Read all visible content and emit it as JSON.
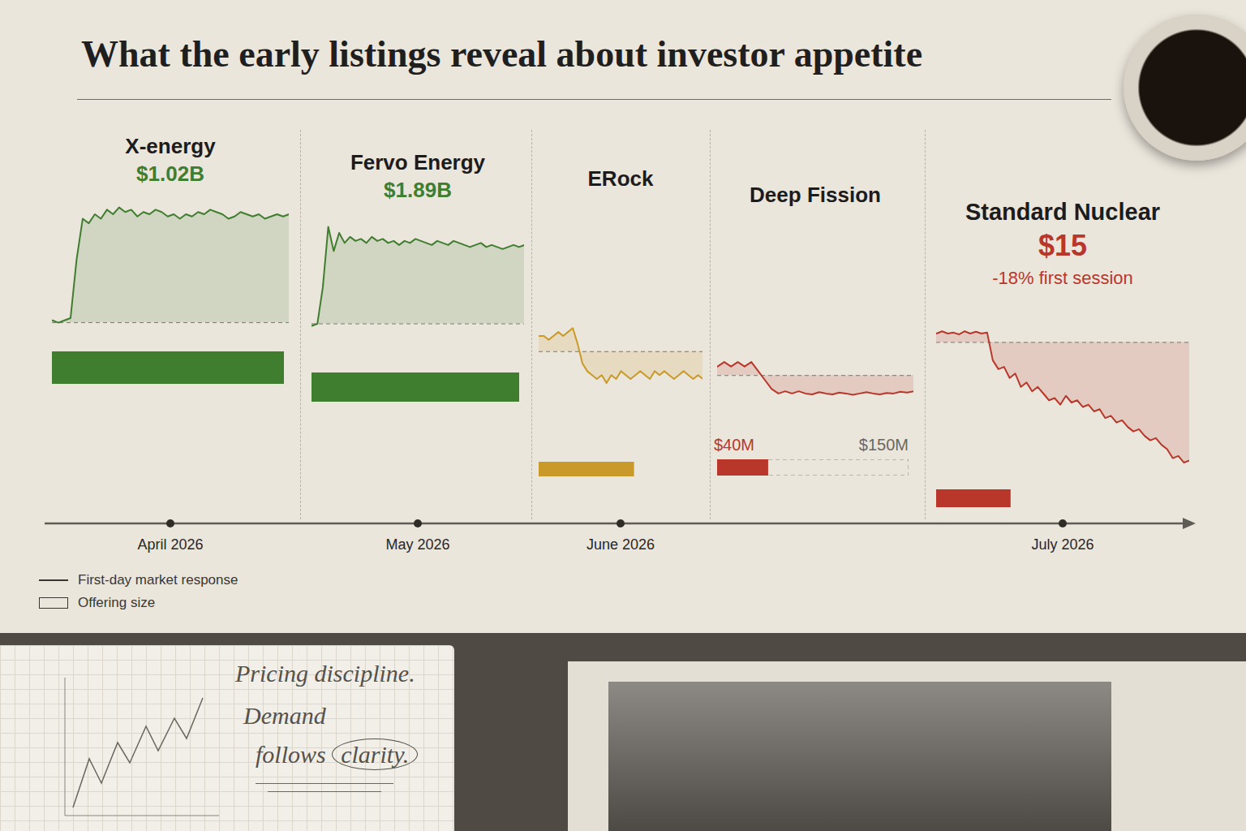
{
  "title": "What the early listings reveal about investor appetite",
  "key_labels": {
    "line": "First-day market response",
    "bar": "Offering size"
  },
  "notebook": {
    "lines": [
      "Pricing discipline.",
      "Demand",
      "follows"
    ],
    "circled": "clarity."
  },
  "chart_data": [
    {
      "type": "line",
      "title": "X-energy",
      "subtitle": "$1.02B",
      "color": "#3f7d2f",
      "date": "April 2026",
      "baseline": 100,
      "ylim": [
        95,
        155
      ],
      "tick_labels": false,
      "values": [
        101,
        100,
        101,
        102,
        128,
        146,
        144,
        148,
        146,
        150,
        148,
        151,
        149,
        150,
        147,
        149,
        148,
        150,
        149,
        147,
        148,
        146,
        148,
        147,
        149,
        148,
        150,
        149,
        148,
        146,
        147,
        149,
        148,
        147,
        148,
        146,
        147,
        148,
        147,
        148
      ],
      "offering": {
        "values": [
          1020
        ],
        "xlim": [
          0,
          1020
        ]
      }
    },
    {
      "type": "line",
      "title": "Fervo Energy",
      "subtitle": "$1.89B",
      "color": "#3f7d2f",
      "date": "May 2026",
      "baseline": 100,
      "ylim": [
        95,
        152
      ],
      "tick_labels": false,
      "values": [
        99,
        100,
        118,
        148,
        136,
        145,
        140,
        143,
        141,
        142,
        140,
        143,
        141,
        142,
        140,
        141,
        139,
        141,
        140,
        142,
        141,
        140,
        139,
        141,
        140,
        139,
        141,
        140,
        139,
        138,
        139,
        140,
        138,
        139,
        138,
        137,
        138,
        139,
        138,
        139
      ],
      "offering": {
        "values": [
          1890
        ],
        "xlim": [
          0,
          1890
        ]
      }
    },
    {
      "type": "line",
      "title": "ERock",
      "color": "#c99a2a",
      "date": "June 2026",
      "baseline": 100,
      "ylim": [
        90,
        107
      ],
      "tick_labels": false,
      "values": [
        104,
        104,
        103,
        104,
        105,
        104,
        105,
        106,
        102,
        97,
        95,
        94,
        93,
        94,
        92,
        94,
        93,
        95,
        94,
        93,
        94,
        95,
        94,
        93,
        95,
        94,
        95,
        94,
        93,
        94,
        95,
        94,
        93,
        94,
        93
      ],
      "offering": {
        "values": [
          60
        ],
        "xlim": [
          0,
          100
        ]
      }
    },
    {
      "type": "line",
      "title": "Deep Fission",
      "color": "#b8372a",
      "baseline": 100,
      "ylim": [
        93,
        106
      ],
      "tick_labels": false,
      "values": [
        102,
        103,
        102,
        103,
        102,
        103,
        101,
        99,
        97,
        96,
        96.5,
        96,
        96.5,
        96,
        95.8,
        96.3,
        96,
        95.8,
        96.2,
        96,
        95.7,
        96,
        96.3,
        96,
        95.8,
        96.1,
        96,
        96.4,
        96.2,
        96.5
      ],
      "offering": {
        "values": [
          40
        ],
        "value_labels": [
          "$40M"
        ],
        "target": 150,
        "target_label": "$150M",
        "xlim": [
          0,
          150
        ]
      }
    },
    {
      "type": "line",
      "title": "Standard Nuclear",
      "subtitle": "$15",
      "annotation": "-18% first session",
      "color": "#b8372a",
      "date": "July 2026",
      "baseline": 15,
      "ylim": [
        12.0,
        15.5
      ],
      "tick_labels": false,
      "values": [
        15.2,
        15.25,
        15.2,
        15.22,
        15.18,
        15.25,
        15.2,
        15.24,
        15.2,
        15.22,
        14.6,
        14.4,
        14.45,
        14.2,
        14.3,
        14.0,
        14.1,
        13.9,
        14.0,
        13.85,
        13.7,
        13.75,
        13.6,
        13.8,
        13.65,
        13.7,
        13.55,
        13.6,
        13.45,
        13.5,
        13.3,
        13.35,
        13.2,
        13.25,
        13.1,
        13.0,
        13.05,
        12.9,
        12.8,
        12.85,
        12.7,
        12.6,
        12.4,
        12.45,
        12.3,
        12.35
      ],
      "offering": {
        "values": [
          30
        ],
        "xlim": [
          0,
          100
        ]
      }
    }
  ]
}
